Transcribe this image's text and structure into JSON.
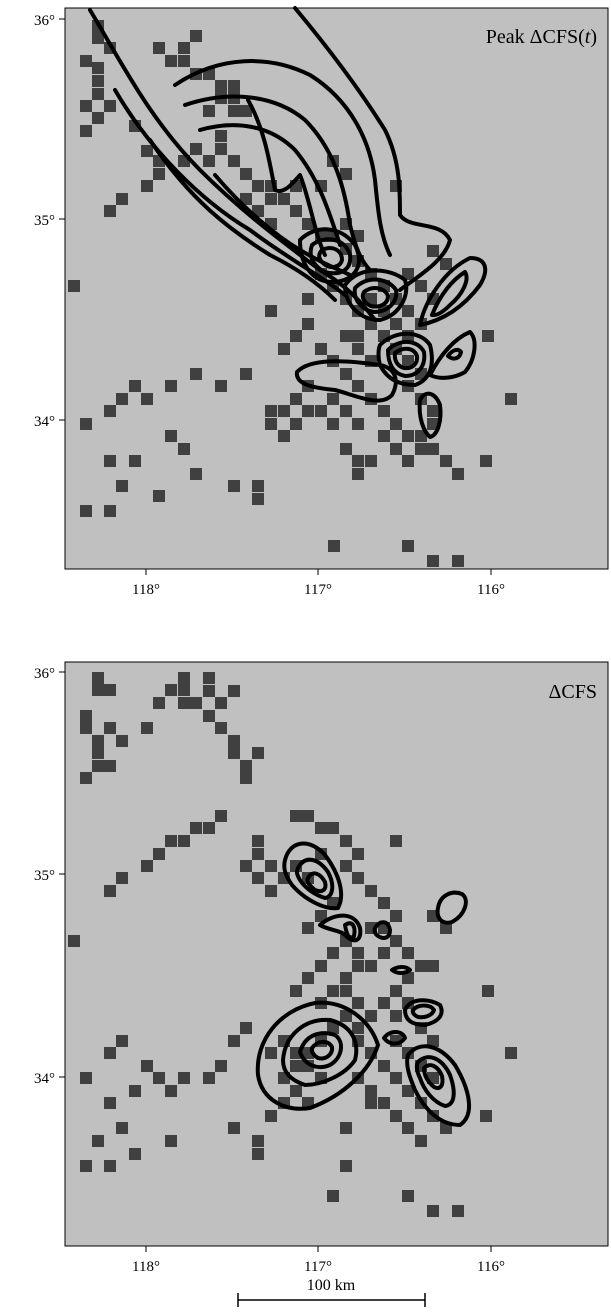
{
  "panels": [
    {
      "id": "top",
      "title_main": "Peak ΔCFS(",
      "title_var": "t",
      "title_end": ")",
      "y_ticks": [
        "36°",
        "35°",
        "34°"
      ],
      "x_ticks": [
        "118°",
        "117°",
        "116°"
      ]
    },
    {
      "id": "bottom",
      "title_main": "ΔCFS",
      "y_ticks": [
        "36°",
        "35°",
        "34°"
      ],
      "x_ticks": [
        "118°",
        "117°",
        "116°"
      ]
    }
  ],
  "scale_bar": {
    "label": "100 km"
  },
  "colors": {
    "background": "#c0c0c0",
    "cells": "#404040",
    "contours": "#000000"
  },
  "map_extent": {
    "lon_range": [
      -118.5,
      -115.5
    ],
    "lat_range": [
      33.3,
      36.05
    ]
  }
}
